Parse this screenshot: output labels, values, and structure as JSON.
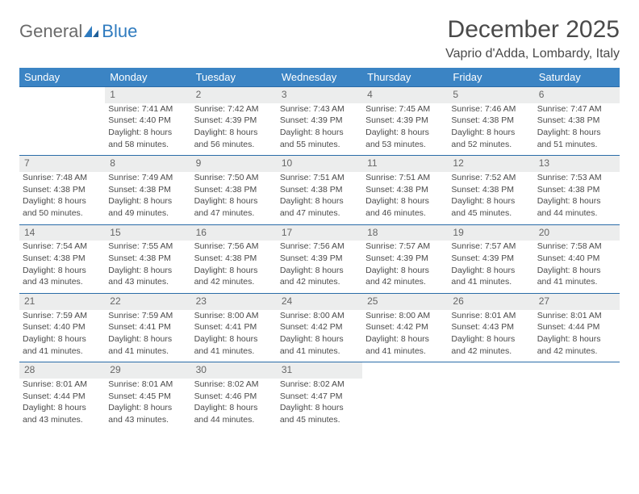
{
  "logo": {
    "word1": "General",
    "word2": "Blue"
  },
  "title": "December 2025",
  "location": "Vaprio d'Adda, Lombardy, Italy",
  "colors": {
    "header_bg": "#3b84c4",
    "header_text": "#ffffff",
    "daynum_bg": "#eceded",
    "row_border": "#2a6ca8",
    "body_text": "#4a4a4a",
    "logo_gray": "#6a6a6a",
    "logo_blue": "#2f7bbf"
  },
  "weekdays": [
    "Sunday",
    "Monday",
    "Tuesday",
    "Wednesday",
    "Thursday",
    "Friday",
    "Saturday"
  ],
  "weeks": [
    {
      "nums": [
        "",
        "1",
        "2",
        "3",
        "4",
        "5",
        "6"
      ],
      "cells": [
        null,
        {
          "sunrise": "7:41 AM",
          "sunset": "4:40 PM",
          "daylight": "8 hours and 58 minutes."
        },
        {
          "sunrise": "7:42 AM",
          "sunset": "4:39 PM",
          "daylight": "8 hours and 56 minutes."
        },
        {
          "sunrise": "7:43 AM",
          "sunset": "4:39 PM",
          "daylight": "8 hours and 55 minutes."
        },
        {
          "sunrise": "7:45 AM",
          "sunset": "4:39 PM",
          "daylight": "8 hours and 53 minutes."
        },
        {
          "sunrise": "7:46 AM",
          "sunset": "4:38 PM",
          "daylight": "8 hours and 52 minutes."
        },
        {
          "sunrise": "7:47 AM",
          "sunset": "4:38 PM",
          "daylight": "8 hours and 51 minutes."
        }
      ]
    },
    {
      "nums": [
        "7",
        "8",
        "9",
        "10",
        "11",
        "12",
        "13"
      ],
      "cells": [
        {
          "sunrise": "7:48 AM",
          "sunset": "4:38 PM",
          "daylight": "8 hours and 50 minutes."
        },
        {
          "sunrise": "7:49 AM",
          "sunset": "4:38 PM",
          "daylight": "8 hours and 49 minutes."
        },
        {
          "sunrise": "7:50 AM",
          "sunset": "4:38 PM",
          "daylight": "8 hours and 47 minutes."
        },
        {
          "sunrise": "7:51 AM",
          "sunset": "4:38 PM",
          "daylight": "8 hours and 47 minutes."
        },
        {
          "sunrise": "7:51 AM",
          "sunset": "4:38 PM",
          "daylight": "8 hours and 46 minutes."
        },
        {
          "sunrise": "7:52 AM",
          "sunset": "4:38 PM",
          "daylight": "8 hours and 45 minutes."
        },
        {
          "sunrise": "7:53 AM",
          "sunset": "4:38 PM",
          "daylight": "8 hours and 44 minutes."
        }
      ]
    },
    {
      "nums": [
        "14",
        "15",
        "16",
        "17",
        "18",
        "19",
        "20"
      ],
      "cells": [
        {
          "sunrise": "7:54 AM",
          "sunset": "4:38 PM",
          "daylight": "8 hours and 43 minutes."
        },
        {
          "sunrise": "7:55 AM",
          "sunset": "4:38 PM",
          "daylight": "8 hours and 43 minutes."
        },
        {
          "sunrise": "7:56 AM",
          "sunset": "4:38 PM",
          "daylight": "8 hours and 42 minutes."
        },
        {
          "sunrise": "7:56 AM",
          "sunset": "4:39 PM",
          "daylight": "8 hours and 42 minutes."
        },
        {
          "sunrise": "7:57 AM",
          "sunset": "4:39 PM",
          "daylight": "8 hours and 42 minutes."
        },
        {
          "sunrise": "7:57 AM",
          "sunset": "4:39 PM",
          "daylight": "8 hours and 41 minutes."
        },
        {
          "sunrise": "7:58 AM",
          "sunset": "4:40 PM",
          "daylight": "8 hours and 41 minutes."
        }
      ]
    },
    {
      "nums": [
        "21",
        "22",
        "23",
        "24",
        "25",
        "26",
        "27"
      ],
      "cells": [
        {
          "sunrise": "7:59 AM",
          "sunset": "4:40 PM",
          "daylight": "8 hours and 41 minutes."
        },
        {
          "sunrise": "7:59 AM",
          "sunset": "4:41 PM",
          "daylight": "8 hours and 41 minutes."
        },
        {
          "sunrise": "8:00 AM",
          "sunset": "4:41 PM",
          "daylight": "8 hours and 41 minutes."
        },
        {
          "sunrise": "8:00 AM",
          "sunset": "4:42 PM",
          "daylight": "8 hours and 41 minutes."
        },
        {
          "sunrise": "8:00 AM",
          "sunset": "4:42 PM",
          "daylight": "8 hours and 41 minutes."
        },
        {
          "sunrise": "8:01 AM",
          "sunset": "4:43 PM",
          "daylight": "8 hours and 42 minutes."
        },
        {
          "sunrise": "8:01 AM",
          "sunset": "4:44 PM",
          "daylight": "8 hours and 42 minutes."
        }
      ]
    },
    {
      "nums": [
        "28",
        "29",
        "30",
        "31",
        "",
        "",
        ""
      ],
      "cells": [
        {
          "sunrise": "8:01 AM",
          "sunset": "4:44 PM",
          "daylight": "8 hours and 43 minutes."
        },
        {
          "sunrise": "8:01 AM",
          "sunset": "4:45 PM",
          "daylight": "8 hours and 43 minutes."
        },
        {
          "sunrise": "8:02 AM",
          "sunset": "4:46 PM",
          "daylight": "8 hours and 44 minutes."
        },
        {
          "sunrise": "8:02 AM",
          "sunset": "4:47 PM",
          "daylight": "8 hours and 45 minutes."
        },
        null,
        null,
        null
      ]
    }
  ],
  "labels": {
    "sunrise": "Sunrise:",
    "sunset": "Sunset:",
    "daylight": "Daylight:"
  }
}
